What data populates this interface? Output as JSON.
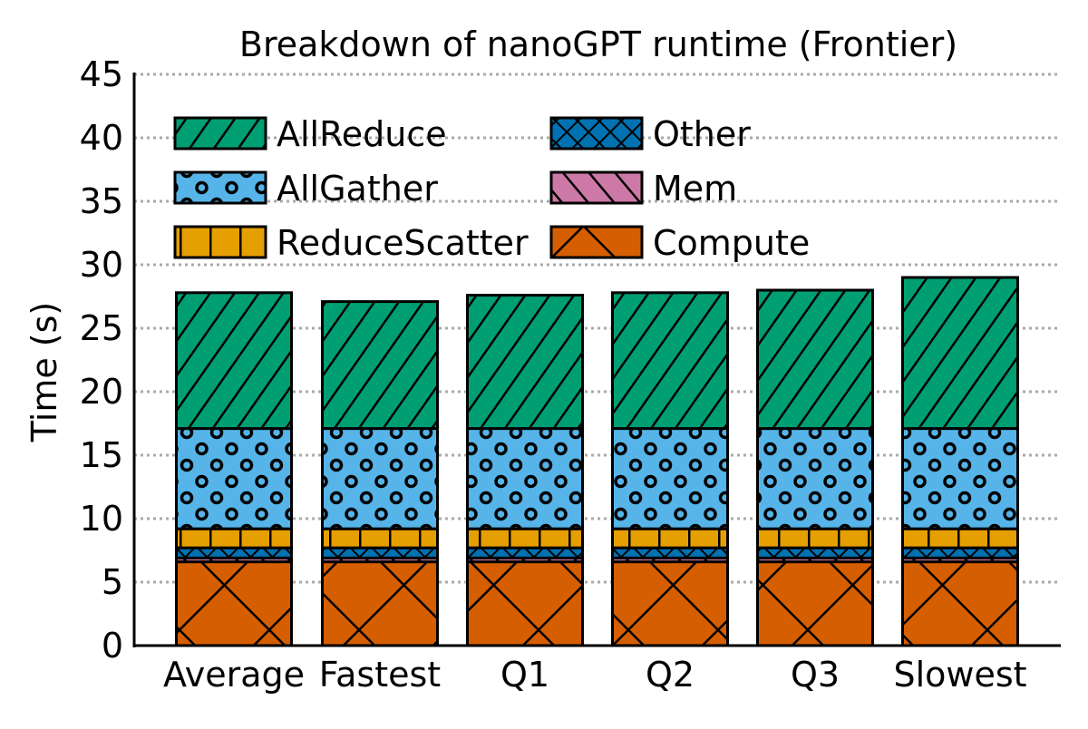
{
  "chart_data": {
    "type": "bar",
    "stacked": true,
    "title": "Breakdown of nanoGPT runtime (Frontier)",
    "xlabel": "",
    "ylabel": "Time (s)",
    "ylim": [
      0,
      45
    ],
    "yticks": [
      "0",
      "5",
      "10",
      "15",
      "20",
      "25",
      "30",
      "35",
      "40",
      "45"
    ],
    "grid": "horizontal dotted",
    "legend_position": "top-left",
    "categories": [
      "Average",
      "Fastest",
      "Q1",
      "Q2",
      "Q3",
      "Slowest"
    ],
    "series": [
      {
        "name": "Compute",
        "color": "#D55E00",
        "pattern": "crosshatch-x",
        "values": [
          6.6,
          6.6,
          6.6,
          6.6,
          6.6,
          6.6
        ]
      },
      {
        "name": "Mem",
        "color": "#CC79A7",
        "pattern": "backslash",
        "values": [
          0.3,
          0.3,
          0.3,
          0.3,
          0.3,
          0.3
        ]
      },
      {
        "name": "Other",
        "color": "#0072B2",
        "pattern": "diamond-cross",
        "values": [
          0.8,
          0.8,
          0.8,
          0.8,
          0.8,
          0.8
        ]
      },
      {
        "name": "ReduceScatter",
        "color": "#E69F00",
        "pattern": "vertical-bars",
        "values": [
          1.5,
          1.5,
          1.5,
          1.5,
          1.5,
          1.5
        ]
      },
      {
        "name": "AllGather",
        "color": "#56B4E9",
        "pattern": "circles",
        "values": [
          7.9,
          7.9,
          7.9,
          7.9,
          7.9,
          7.9
        ]
      },
      {
        "name": "AllReduce",
        "color": "#009E73",
        "pattern": "slash",
        "values": [
          10.7,
          10.0,
          10.5,
          10.7,
          10.9,
          11.9
        ]
      }
    ],
    "legend_order": [
      "AllReduce",
      "Other",
      "AllGather",
      "Mem",
      "ReduceScatter",
      "Compute"
    ]
  }
}
